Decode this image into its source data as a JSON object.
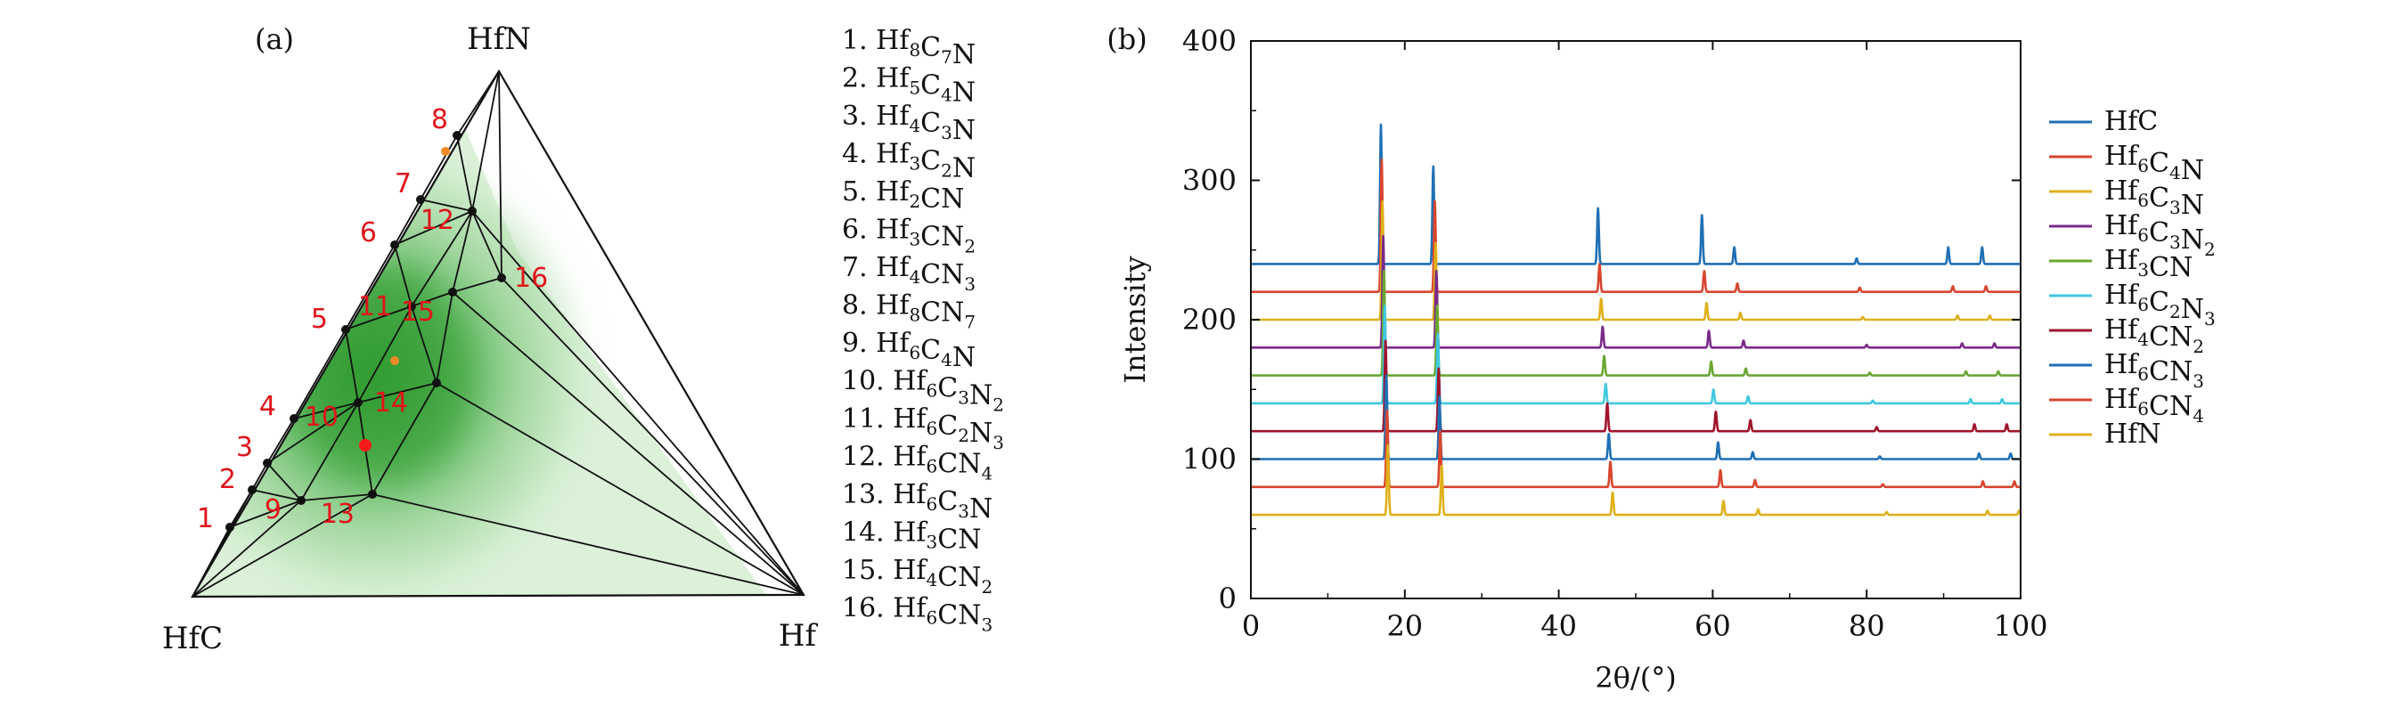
{
  "panels": {
    "a_label": "(a)",
    "b_label": "(b)"
  },
  "ternary": {
    "vertices": {
      "top": "HfN",
      "left": "HfC",
      "right": "Hf"
    },
    "legend": [
      {
        "num": "1.",
        "parts": [
          [
            "Hf",
            "8"
          ],
          [
            "C",
            "7"
          ],
          [
            "N",
            ""
          ]
        ]
      },
      {
        "num": "2.",
        "parts": [
          [
            "Hf",
            "5"
          ],
          [
            "C",
            "4"
          ],
          [
            "N",
            ""
          ]
        ]
      },
      {
        "num": "3.",
        "parts": [
          [
            "Hf",
            "4"
          ],
          [
            "C",
            "3"
          ],
          [
            "N",
            ""
          ]
        ]
      },
      {
        "num": "4.",
        "parts": [
          [
            "Hf",
            "3"
          ],
          [
            "C",
            "2"
          ],
          [
            "N",
            ""
          ]
        ]
      },
      {
        "num": "5.",
        "parts": [
          [
            "Hf",
            "2"
          ],
          [
            "CN",
            ""
          ]
        ]
      },
      {
        "num": "6.",
        "parts": [
          [
            "Hf",
            "3"
          ],
          [
            "CN",
            "2"
          ]
        ]
      },
      {
        "num": "7.",
        "parts": [
          [
            "Hf",
            "4"
          ],
          [
            "CN",
            "3"
          ]
        ]
      },
      {
        "num": "8.",
        "parts": [
          [
            "Hf",
            "8"
          ],
          [
            "CN",
            "7"
          ]
        ]
      },
      {
        "num": "9.",
        "parts": [
          [
            "Hf",
            "6"
          ],
          [
            "C",
            "4"
          ],
          [
            "N",
            ""
          ]
        ]
      },
      {
        "num": "10.",
        "parts": [
          [
            "Hf",
            "6"
          ],
          [
            "C",
            "3"
          ],
          [
            "N",
            "2"
          ]
        ]
      },
      {
        "num": "11.",
        "parts": [
          [
            "Hf",
            "6"
          ],
          [
            "C",
            "2"
          ],
          [
            "N",
            "3"
          ]
        ]
      },
      {
        "num": "12.",
        "parts": [
          [
            "Hf",
            "6"
          ],
          [
            "CN",
            "4"
          ]
        ]
      },
      {
        "num": "13.",
        "parts": [
          [
            "Hf",
            "6"
          ],
          [
            "C",
            "3"
          ],
          [
            "N",
            ""
          ]
        ]
      },
      {
        "num": "14.",
        "parts": [
          [
            "Hf",
            "3"
          ],
          [
            "CN",
            ""
          ]
        ]
      },
      {
        "num": "15.",
        "parts": [
          [
            "Hf",
            "4"
          ],
          [
            "CN",
            "2"
          ]
        ]
      },
      {
        "num": "16.",
        "parts": [
          [
            "Hf",
            "6"
          ],
          [
            "CN",
            "3"
          ]
        ]
      }
    ],
    "point_labels": [
      "1",
      "2",
      "3",
      "4",
      "5",
      "6",
      "7",
      "8",
      "9",
      "10",
      "11",
      "12",
      "13",
      "14",
      "15",
      "16"
    ],
    "colors": {
      "shade": "#2e9a2e",
      "points": "#111111",
      "labels": "#e0151b",
      "extra_red": "#ff1a1a",
      "extra_orange": "#f08a28"
    }
  },
  "chart_data": {
    "type": "line",
    "xlabel": "2θ/(°)",
    "ylabel": "Intensity",
    "xlim": [
      0,
      100
    ],
    "ylim": [
      0,
      400
    ],
    "xticks": [
      0,
      20,
      40,
      60,
      80,
      100
    ],
    "yticks": [
      0,
      100,
      200,
      300,
      400
    ],
    "legend_position": "right",
    "series": [
      {
        "name": "HfC",
        "color": "#1f6fb5",
        "baseline": 240,
        "peaks": [
          [
            16.9,
            100
          ],
          [
            23.7,
            70
          ],
          [
            45.1,
            40
          ],
          [
            58.6,
            35
          ],
          [
            62.8,
            12
          ],
          [
            78.7,
            4
          ],
          [
            90.6,
            12
          ],
          [
            95.0,
            12
          ]
        ]
      },
      {
        "name": "Hf6C4N",
        "color": "#d8452e",
        "baseline": 220,
        "peaks": [
          [
            17.0,
            95
          ],
          [
            23.9,
            65
          ],
          [
            45.3,
            20
          ],
          [
            58.9,
            15
          ],
          [
            63.2,
            6
          ],
          [
            79.1,
            3
          ],
          [
            91.2,
            4
          ],
          [
            95.5,
            4
          ]
        ]
      },
      {
        "name": "Hf6C3N",
        "color": "#dfb01a",
        "baseline": 200,
        "peaks": [
          [
            17.1,
            85
          ],
          [
            24.0,
            55
          ],
          [
            45.5,
            15
          ],
          [
            59.2,
            12
          ],
          [
            63.6,
            5
          ],
          [
            79.5,
            2
          ],
          [
            91.8,
            3
          ],
          [
            96.0,
            3
          ]
        ]
      },
      {
        "name": "Hf6C3N2",
        "color": "#7a2a8a",
        "baseline": 180,
        "peaks": [
          [
            17.2,
            80
          ],
          [
            24.1,
            55
          ],
          [
            45.7,
            15
          ],
          [
            59.5,
            12
          ],
          [
            64.0,
            5
          ],
          [
            80.0,
            2
          ],
          [
            92.4,
            3
          ],
          [
            96.6,
            3
          ]
        ]
      },
      {
        "name": "Hf3CN",
        "color": "#6aa832",
        "baseline": 160,
        "peaks": [
          [
            17.3,
            75
          ],
          [
            24.2,
            50
          ],
          [
            45.9,
            14
          ],
          [
            59.8,
            10
          ],
          [
            64.3,
            5
          ],
          [
            80.4,
            2
          ],
          [
            92.9,
            3
          ],
          [
            97.1,
            3
          ]
        ]
      },
      {
        "name": "Hf6C2N3",
        "color": "#3fc8e0",
        "baseline": 140,
        "peaks": [
          [
            17.4,
            70
          ],
          [
            24.3,
            50
          ],
          [
            46.1,
            14
          ],
          [
            60.1,
            10
          ],
          [
            64.6,
            5
          ],
          [
            80.8,
            2
          ],
          [
            93.5,
            3
          ],
          [
            97.6,
            3
          ]
        ]
      },
      {
        "name": "Hf4CN2",
        "color": "#a0132a",
        "baseline": 120,
        "peaks": [
          [
            17.5,
            65
          ],
          [
            24.4,
            45
          ],
          [
            46.3,
            20
          ],
          [
            60.4,
            14
          ],
          [
            64.9,
            8
          ],
          [
            81.3,
            3
          ],
          [
            94.0,
            5
          ],
          [
            98.2,
            5
          ]
        ]
      },
      {
        "name": "Hf6CN3",
        "color": "#1f6fb5",
        "baseline": 100,
        "peaks": [
          [
            17.6,
            60
          ],
          [
            24.5,
            45
          ],
          [
            46.5,
            18
          ],
          [
            60.7,
            12
          ],
          [
            65.2,
            5
          ],
          [
            81.7,
            2
          ],
          [
            94.6,
            4
          ],
          [
            98.7,
            4
          ]
        ]
      },
      {
        "name": "Hf6CN4",
        "color": "#d8452e",
        "baseline": 80,
        "peaks": [
          [
            17.7,
            55
          ],
          [
            24.6,
            40
          ],
          [
            46.7,
            18
          ],
          [
            61.0,
            12
          ],
          [
            65.5,
            5
          ],
          [
            82.1,
            2
          ],
          [
            95.1,
            4
          ],
          [
            99.2,
            4
          ]
        ]
      },
      {
        "name": "HfN",
        "color": "#dfb01a",
        "baseline": 60,
        "peaks": [
          [
            17.8,
            50
          ],
          [
            24.8,
            35
          ],
          [
            47.0,
            16
          ],
          [
            61.4,
            10
          ],
          [
            65.9,
            4
          ],
          [
            82.6,
            2
          ],
          [
            95.7,
            3
          ],
          [
            99.8,
            3
          ]
        ]
      }
    ],
    "legend": [
      {
        "num": "",
        "parts": [
          [
            "HfC",
            ""
          ]
        ]
      },
      {
        "num": "",
        "parts": [
          [
            "Hf",
            "6"
          ],
          [
            "C",
            "4"
          ],
          [
            "N",
            ""
          ]
        ]
      },
      {
        "num": "",
        "parts": [
          [
            "Hf",
            "6"
          ],
          [
            "C",
            "3"
          ],
          [
            "N",
            ""
          ]
        ]
      },
      {
        "num": "",
        "parts": [
          [
            "Hf",
            "6"
          ],
          [
            "C",
            "3"
          ],
          [
            "N",
            "2"
          ]
        ]
      },
      {
        "num": "",
        "parts": [
          [
            "Hf",
            "3"
          ],
          [
            "CN",
            ""
          ]
        ]
      },
      {
        "num": "",
        "parts": [
          [
            "Hf",
            "6"
          ],
          [
            "C",
            "2"
          ],
          [
            "N",
            "3"
          ]
        ]
      },
      {
        "num": "",
        "parts": [
          [
            "Hf",
            "4"
          ],
          [
            "CN",
            "2"
          ]
        ]
      },
      {
        "num": "",
        "parts": [
          [
            "Hf",
            "6"
          ],
          [
            "CN",
            "3"
          ]
        ]
      },
      {
        "num": "",
        "parts": [
          [
            "Hf",
            "6"
          ],
          [
            "CN",
            "4"
          ]
        ]
      },
      {
        "num": "",
        "parts": [
          [
            "HfN",
            ""
          ]
        ]
      }
    ]
  }
}
